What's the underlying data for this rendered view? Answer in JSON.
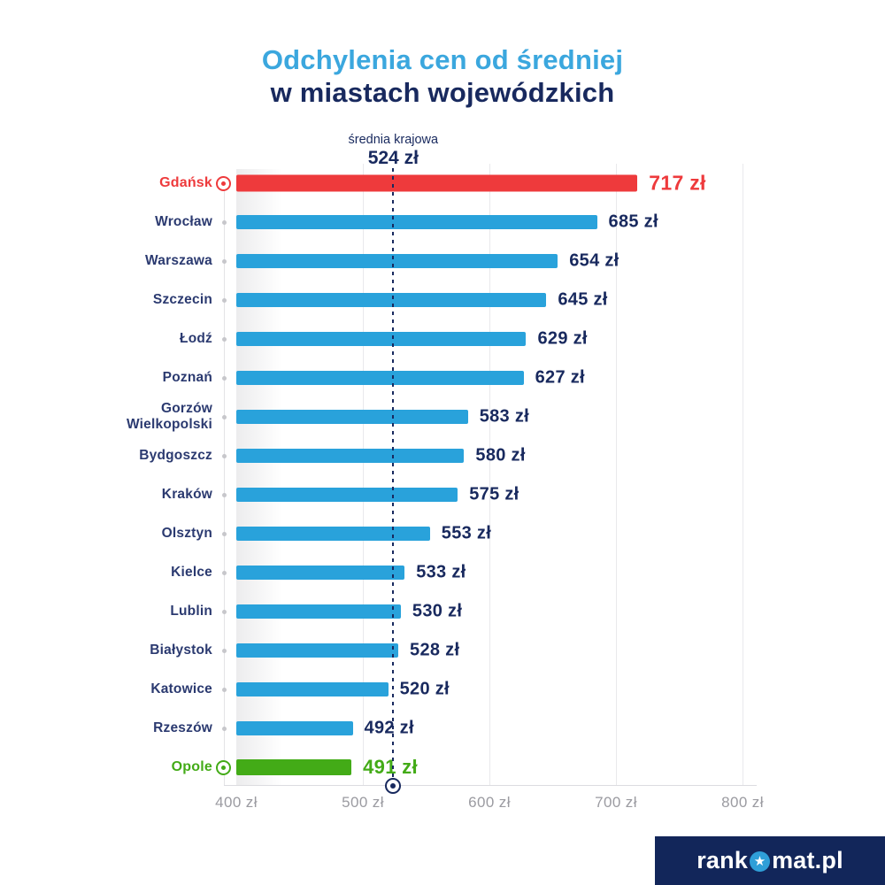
{
  "title": {
    "line1": "Odchylenia cen od średniej",
    "line2": "w miastach wojewódzkich"
  },
  "annotation": {
    "label": "średnia krajowa",
    "value_label": "524 zł"
  },
  "chart_data": {
    "type": "bar",
    "orientation": "horizontal",
    "title": "Odchylenia cen od średniej w miastach wojewódzkich",
    "categories": [
      "Gdańsk",
      "Wrocław",
      "Warszawa",
      "Szczecin",
      "Łodź",
      "Poznań",
      "Gorzów Wielkopolski",
      "Bydgoszcz",
      "Kraków",
      "Olsztyn",
      "Kielce",
      "Lublin",
      "Białystok",
      "Katowice",
      "Rzeszów",
      "Opole"
    ],
    "values": [
      717,
      685,
      654,
      645,
      629,
      627,
      583,
      580,
      575,
      553,
      533,
      530,
      528,
      520,
      492,
      491
    ],
    "value_labels": [
      "717 zł",
      "685 zł",
      "654 zł",
      "645 zł",
      "629 zł",
      "627 zł",
      "583 zł",
      "580 zł",
      "575 zł",
      "553 zł",
      "533 zł",
      "530 zł",
      "528 zł",
      "520 zł",
      "492 zł",
      "491 zł"
    ],
    "unit": "zł",
    "bar_color": "#29a2db",
    "highlight_max": {
      "city": "Gdańsk",
      "color": "#ee3a3c"
    },
    "highlight_min": {
      "city": "Opole",
      "color": "#43ab17"
    },
    "reference_line": {
      "label": "średnia krajowa",
      "value": 524,
      "value_label": "524 zł"
    },
    "x_axis": {
      "ticks": [
        400,
        500,
        600,
        700,
        800
      ],
      "tick_labels": [
        "400 zł",
        "500 zł",
        "600 zł",
        "700 zł",
        "800 zł"
      ],
      "range": [
        400,
        811
      ]
    },
    "grid": true,
    "legend": false
  },
  "footer": {
    "brand_left": "rank",
    "brand_right": "mat.pl",
    "star_icon": "star-in-circle"
  },
  "colors": {
    "accent": "#3ba7de",
    "navy": "#18295e",
    "red": "#ee3a3c",
    "green": "#43ab17",
    "bar_blue": "#29a2db",
    "axis_text": "#9b9ba1",
    "gridline": "#e9e9ec",
    "logo_bg": "#12265a",
    "star_blue": "#2f9fd8"
  }
}
